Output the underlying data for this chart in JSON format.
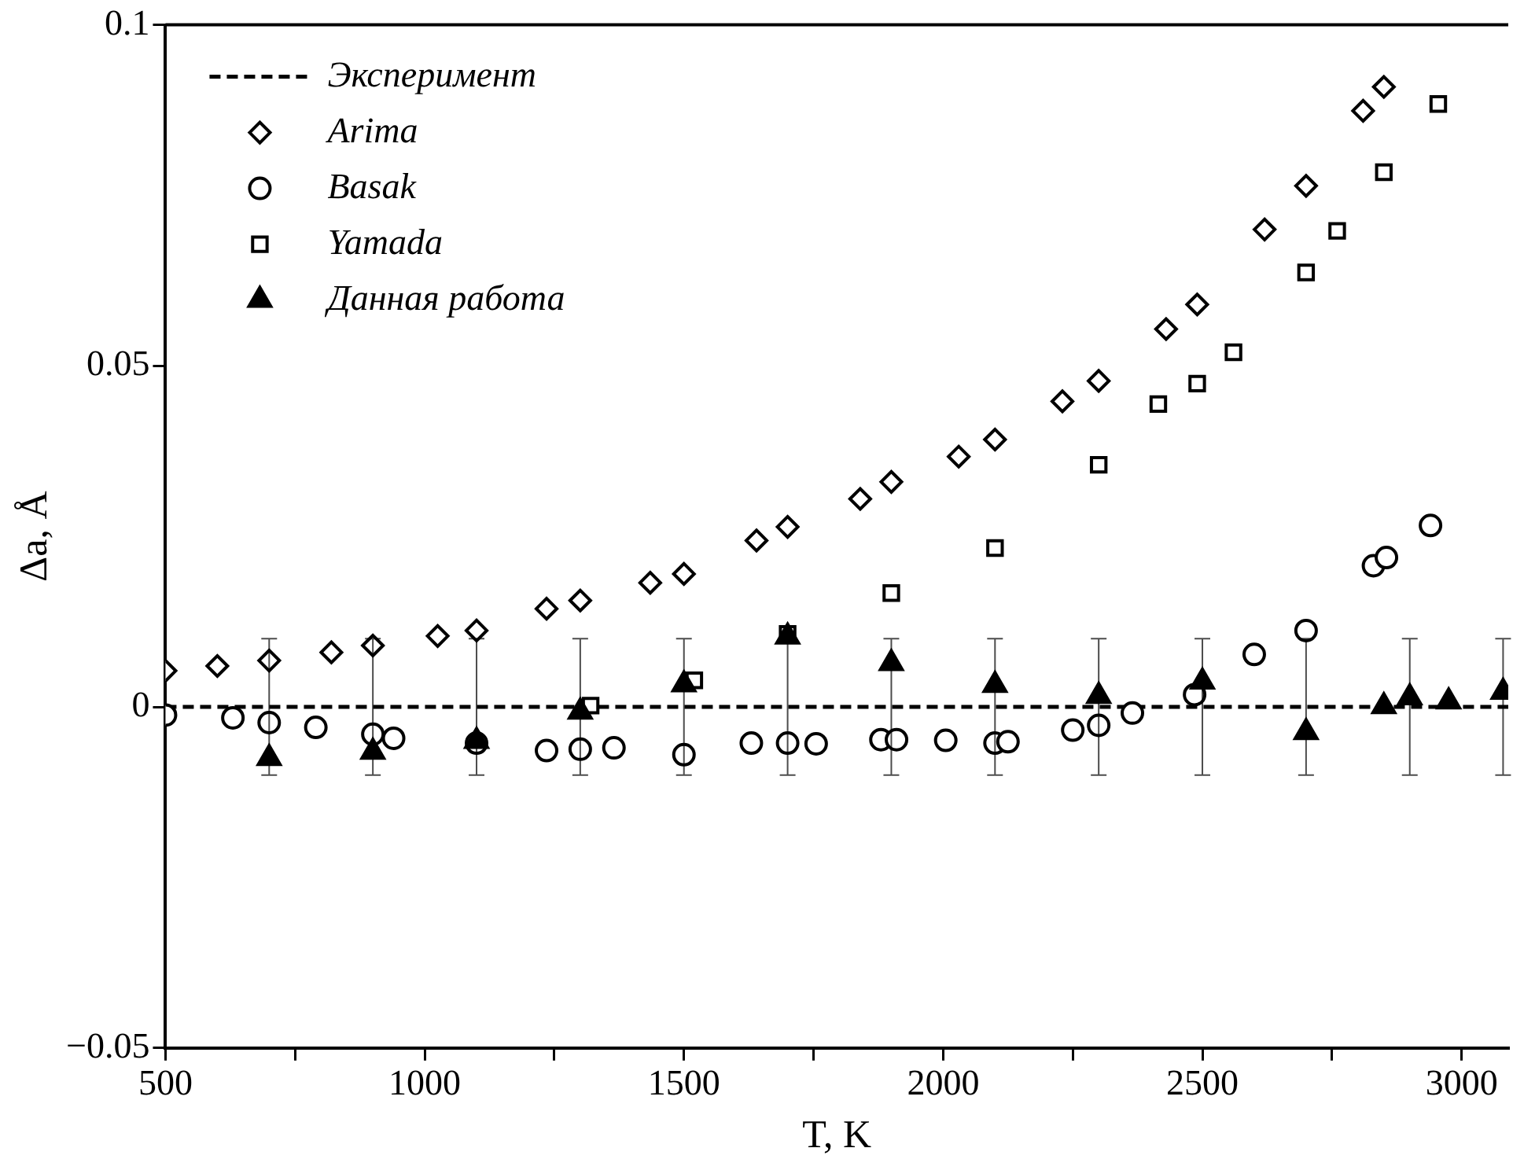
{
  "chart_data": {
    "type": "scatter",
    "xlabel": "T, K",
    "ylabel": "Δa, Å",
    "xlim": [
      500,
      3090
    ],
    "ylim": [
      -0.05,
      0.1
    ],
    "xticks": [
      500,
      {
        "value": 750,
        "label": null
      },
      1000,
      {
        "value": 1250,
        "label": null
      },
      1500,
      {
        "value": 1750,
        "label": null
      },
      2000,
      {
        "value": 2250,
        "label": null
      },
      2500,
      {
        "value": 2750,
        "label": null
      },
      3000
    ],
    "yticks": [
      {
        "value": -0.05,
        "label": "−0.05"
      },
      0,
      0.05,
      0.1
    ],
    "legend": "top left",
    "series": [
      {
        "name": "Эксперимент",
        "type": "line",
        "color": "#000000",
        "marker": "none",
        "line_style": "dashed",
        "x": [
          500,
          700,
          900,
          1100,
          1300,
          1500,
          1700,
          1900,
          2100,
          2300,
          2500,
          2700,
          2900,
          3080,
          3090
        ],
        "values": [
          0,
          0,
          0,
          0,
          0,
          0,
          0,
          0,
          0,
          0,
          0,
          0,
          0,
          0,
          0
        ],
        "errors": [
          null,
          0.01,
          0.01,
          0.01,
          0.01,
          0.01,
          0.01,
          0.01,
          0.01,
          0.01,
          0.01,
          0.01,
          0.01,
          0.01,
          null
        ]
      },
      {
        "name": "Arima",
        "type": "scatter",
        "color": "#000000",
        "marker": "diamond",
        "x": [
          500,
          600,
          700,
          820,
          900,
          1025,
          1100,
          1235,
          1300,
          1435,
          1500,
          1640,
          1700,
          1840,
          1900,
          2030,
          2100,
          2230,
          2300,
          2430,
          2490,
          2620,
          2700,
          2810,
          2850
        ],
        "values": [
          0.0053,
          0.006,
          0.0068,
          0.008,
          0.009,
          0.0104,
          0.0112,
          0.0144,
          0.0156,
          0.0182,
          0.0195,
          0.0244,
          0.0264,
          0.0305,
          0.033,
          0.0367,
          0.0392,
          0.0448,
          0.0478,
          0.0554,
          0.059,
          0.07,
          0.0764,
          0.0874,
          0.0909
        ]
      },
      {
        "name": "Basak",
        "type": "scatter",
        "color": "#000000",
        "marker": "circle",
        "x": [
          500,
          630,
          700,
          790,
          900,
          940,
          1100,
          1235,
          1300,
          1365,
          1500,
          1630,
          1700,
          1755,
          1880,
          1910,
          2005,
          2100,
          2125,
          2250,
          2300,
          2365,
          2485,
          2600,
          2700,
          2830,
          2855,
          2940
        ],
        "values": [
          -0.0012,
          -0.0016,
          -0.0023,
          -0.003,
          -0.004,
          -0.0046,
          -0.0053,
          -0.0064,
          -0.0062,
          -0.006,
          -0.007,
          -0.0053,
          -0.0053,
          -0.0054,
          -0.0048,
          -0.0048,
          -0.0049,
          -0.0053,
          -0.0051,
          -0.0034,
          -0.0027,
          -0.0009,
          0.0018,
          0.0077,
          0.0112,
          0.0207,
          0.0219,
          0.0266
        ]
      },
      {
        "name": "Yamada",
        "type": "scatter",
        "color": "#000000",
        "marker": "square",
        "x": [
          1320,
          1520,
          1700,
          1900,
          2100,
          2300,
          2415,
          2490,
          2560,
          2700,
          2760,
          2850,
          2955
        ],
        "values": [
          0.0002,
          0.0039,
          0.0107,
          0.0167,
          0.0233,
          0.0355,
          0.0444,
          0.0474,
          0.052,
          0.0637,
          0.0698,
          0.0784,
          0.0884
        ]
      },
      {
        "name": "Данная работа",
        "type": "scatter",
        "color": "#000000",
        "marker": "triangle",
        "x": [
          700,
          900,
          1100,
          1300,
          1500,
          1700,
          1900,
          2100,
          2300,
          2500,
          2700,
          2850,
          2900,
          2975,
          3080
        ],
        "values": [
          -0.0075,
          -0.0066,
          -0.005,
          -0.0007,
          0.0033,
          0.0103,
          0.0064,
          0.0032,
          0.0016,
          0.0037,
          -0.0037,
          0.0001,
          0.0014,
          0.0008,
          0.0022
        ]
      }
    ]
  }
}
